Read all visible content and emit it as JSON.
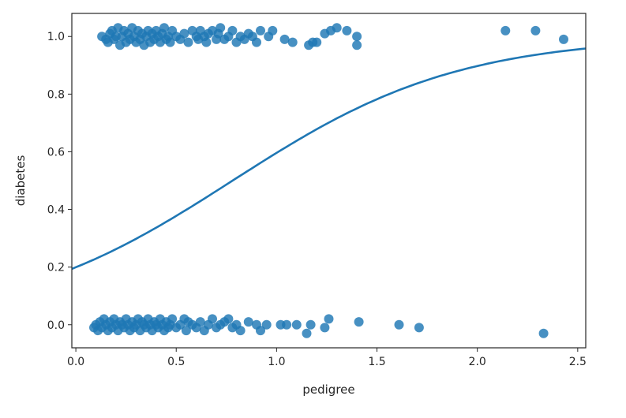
{
  "chart_data": {
    "type": "scatter",
    "xlabel": "pedigree",
    "ylabel": "diabetes",
    "xlim": [
      -0.02,
      2.54
    ],
    "ylim": [
      -0.08,
      1.08
    ],
    "x_ticks": [
      0.0,
      0.5,
      1.0,
      1.5,
      2.0,
      2.5
    ],
    "x_tick_labels": [
      "0.0",
      "0.5",
      "1.0",
      "1.5",
      "2.0",
      "2.5"
    ],
    "y_ticks": [
      0.0,
      0.2,
      0.4,
      0.6,
      0.8,
      1.0
    ],
    "y_tick_labels": [
      "0.0",
      "0.2",
      "0.4",
      "0.6",
      "0.8",
      "1.0"
    ],
    "grid": false,
    "legend": "none",
    "colors": {
      "points": "#1f77b4",
      "line": "#1f77b4",
      "frame": "#262626"
    },
    "points_y1": [
      [
        0.13,
        1.0
      ],
      [
        0.15,
        0.99
      ],
      [
        0.16,
        0.98
      ],
      [
        0.17,
        1.01
      ],
      [
        0.18,
        1.02
      ],
      [
        0.19,
        0.99
      ],
      [
        0.2,
        1.0
      ],
      [
        0.21,
        1.03
      ],
      [
        0.22,
        0.97
      ],
      [
        0.23,
        1.0
      ],
      [
        0.24,
        1.02
      ],
      [
        0.25,
        0.98
      ],
      [
        0.26,
        1.01
      ],
      [
        0.27,
        0.99
      ],
      [
        0.28,
        1.03
      ],
      [
        0.29,
        1.0
      ],
      [
        0.3,
        0.98
      ],
      [
        0.31,
        1.02
      ],
      [
        0.32,
        0.99
      ],
      [
        0.33,
        1.01
      ],
      [
        0.34,
        0.97
      ],
      [
        0.35,
        1.0
      ],
      [
        0.36,
        1.02
      ],
      [
        0.37,
        0.98
      ],
      [
        0.38,
        1.01
      ],
      [
        0.39,
        0.99
      ],
      [
        0.4,
        1.02
      ],
      [
        0.41,
        1.0
      ],
      [
        0.42,
        0.98
      ],
      [
        0.43,
        1.01
      ],
      [
        0.44,
        1.03
      ],
      [
        0.45,
        0.99
      ],
      [
        0.46,
        1.0
      ],
      [
        0.47,
        0.98
      ],
      [
        0.48,
        1.02
      ],
      [
        0.5,
        1.0
      ],
      [
        0.52,
        0.99
      ],
      [
        0.54,
        1.01
      ],
      [
        0.56,
        0.98
      ],
      [
        0.58,
        1.02
      ],
      [
        0.6,
        1.0
      ],
      [
        0.61,
        0.99
      ],
      [
        0.62,
        1.02
      ],
      [
        0.64,
        1.0
      ],
      [
        0.65,
        0.98
      ],
      [
        0.66,
        1.01
      ],
      [
        0.68,
        1.02
      ],
      [
        0.7,
        0.99
      ],
      [
        0.71,
        1.01
      ],
      [
        0.72,
        1.03
      ],
      [
        0.74,
        0.99
      ],
      [
        0.76,
        1.0
      ],
      [
        0.78,
        1.02
      ],
      [
        0.8,
        0.98
      ],
      [
        0.82,
        1.0
      ],
      [
        0.84,
        0.99
      ],
      [
        0.86,
        1.01
      ],
      [
        0.88,
        1.0
      ],
      [
        0.9,
        0.98
      ],
      [
        0.92,
        1.02
      ],
      [
        0.96,
        1.0
      ],
      [
        0.98,
        1.02
      ],
      [
        1.04,
        0.99
      ],
      [
        1.08,
        0.98
      ],
      [
        1.16,
        0.97
      ],
      [
        1.18,
        0.98
      ],
      [
        1.2,
        0.98
      ],
      [
        1.24,
        1.01
      ],
      [
        1.27,
        1.02
      ],
      [
        1.3,
        1.03
      ],
      [
        1.35,
        1.02
      ],
      [
        1.4,
        1.0
      ],
      [
        1.4,
        0.97
      ],
      [
        2.14,
        1.02
      ],
      [
        2.29,
        1.02
      ],
      [
        2.43,
        0.99
      ]
    ],
    "points_y0": [
      [
        0.09,
        -0.01
      ],
      [
        0.1,
        0.0
      ],
      [
        0.11,
        -0.02
      ],
      [
        0.12,
        0.01
      ],
      [
        0.13,
        -0.01
      ],
      [
        0.14,
        0.02
      ],
      [
        0.15,
        0.0
      ],
      [
        0.16,
        -0.02
      ],
      [
        0.17,
        0.01
      ],
      [
        0.18,
        -0.01
      ],
      [
        0.19,
        0.02
      ],
      [
        0.2,
        0.0
      ],
      [
        0.21,
        -0.02
      ],
      [
        0.22,
        0.01
      ],
      [
        0.23,
        0.0
      ],
      [
        0.24,
        -0.01
      ],
      [
        0.25,
        0.02
      ],
      [
        0.26,
        0.0
      ],
      [
        0.27,
        -0.02
      ],
      [
        0.28,
        0.01
      ],
      [
        0.29,
        -0.01
      ],
      [
        0.3,
        0.0
      ],
      [
        0.31,
        0.02
      ],
      [
        0.32,
        -0.02
      ],
      [
        0.33,
        0.01
      ],
      [
        0.34,
        0.0
      ],
      [
        0.35,
        -0.01
      ],
      [
        0.36,
        0.02
      ],
      [
        0.37,
        0.0
      ],
      [
        0.38,
        -0.02
      ],
      [
        0.39,
        0.01
      ],
      [
        0.4,
        0.0
      ],
      [
        0.41,
        -0.01
      ],
      [
        0.42,
        0.02
      ],
      [
        0.43,
        0.0
      ],
      [
        0.44,
        -0.02
      ],
      [
        0.45,
        0.01
      ],
      [
        0.46,
        -0.01
      ],
      [
        0.47,
        0.0
      ],
      [
        0.48,
        0.02
      ],
      [
        0.5,
        -0.01
      ],
      [
        0.52,
        0.0
      ],
      [
        0.54,
        0.02
      ],
      [
        0.55,
        -0.02
      ],
      [
        0.56,
        0.01
      ],
      [
        0.58,
        0.0
      ],
      [
        0.6,
        -0.01
      ],
      [
        0.62,
        0.01
      ],
      [
        0.64,
        -0.02
      ],
      [
        0.66,
        0.0
      ],
      [
        0.68,
        0.02
      ],
      [
        0.7,
        -0.01
      ],
      [
        0.72,
        0.0
      ],
      [
        0.74,
        0.01
      ],
      [
        0.76,
        0.02
      ],
      [
        0.78,
        -0.01
      ],
      [
        0.8,
        0.0
      ],
      [
        0.82,
        -0.02
      ],
      [
        0.86,
        0.01
      ],
      [
        0.9,
        0.0
      ],
      [
        0.92,
        -0.02
      ],
      [
        0.95,
        0.0
      ],
      [
        1.02,
        0.0
      ],
      [
        1.05,
        0.0
      ],
      [
        1.1,
        0.0
      ],
      [
        1.15,
        -0.03
      ],
      [
        1.17,
        0.0
      ],
      [
        1.24,
        -0.01
      ],
      [
        1.26,
        0.02
      ],
      [
        1.41,
        0.01
      ],
      [
        1.61,
        0.0
      ],
      [
        1.71,
        -0.01
      ],
      [
        2.33,
        -0.03
      ]
    ],
    "logistic_curve": {
      "intercept": -1.39,
      "slope": 1.78,
      "x_start": -0.02,
      "x_end": 2.54
    }
  }
}
